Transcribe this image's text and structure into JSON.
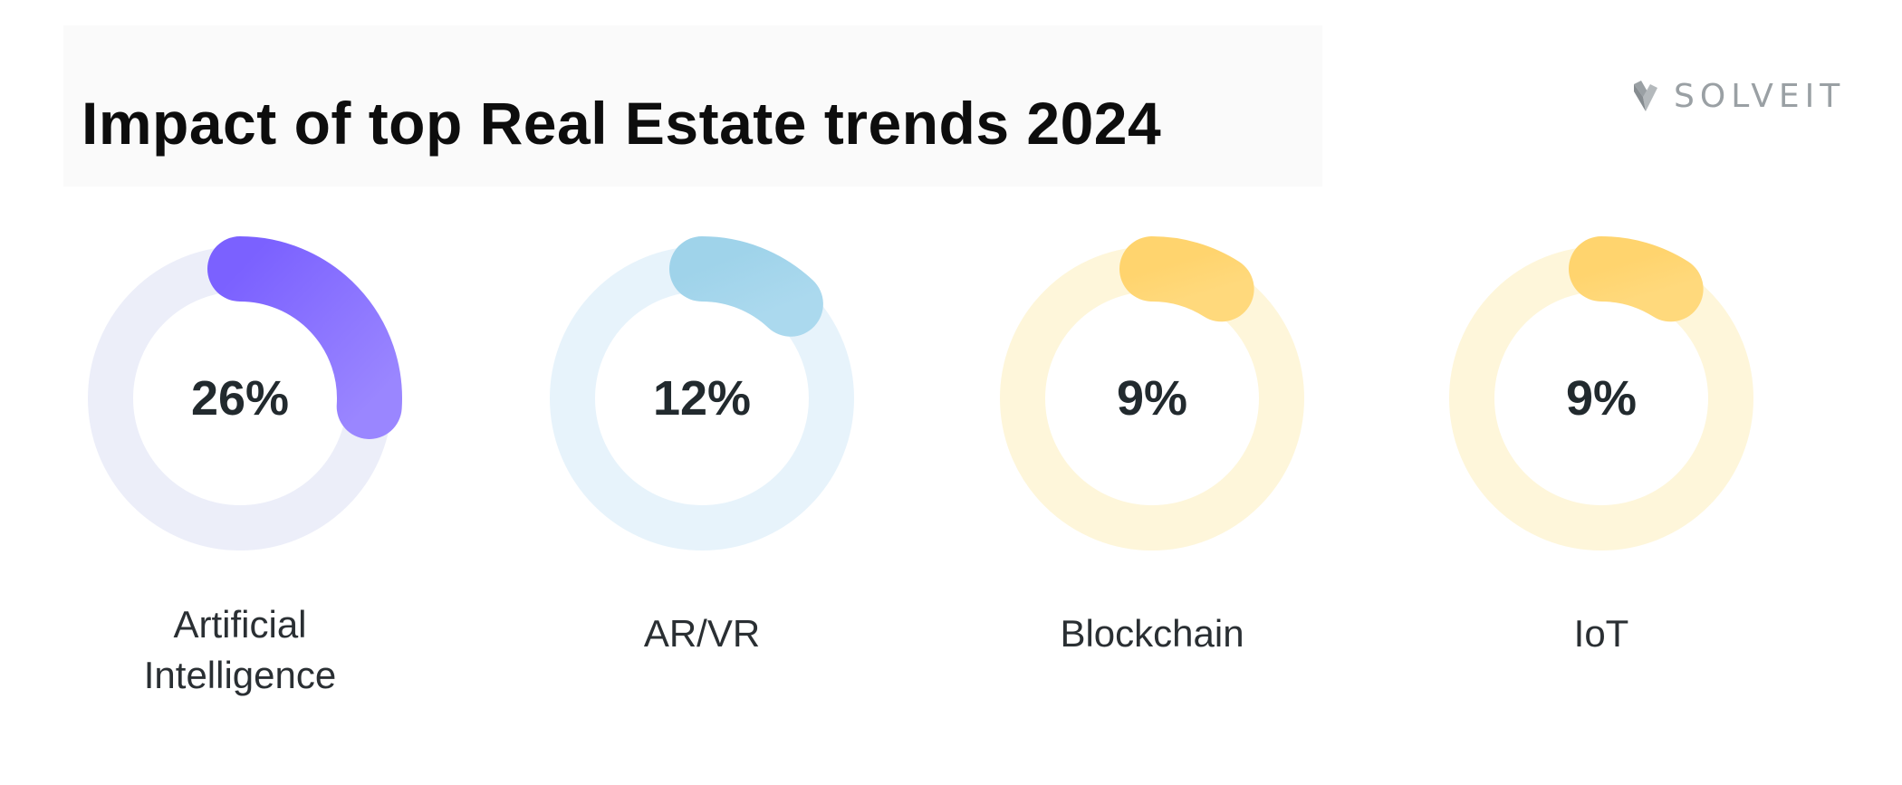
{
  "title": "Impact of top Real Estate trends 2024",
  "logo": {
    "text": "SOLVEIT",
    "icon": "solveit-logo-icon"
  },
  "chart_data": {
    "type": "pie",
    "subtype": "donut-gauges",
    "title": "Impact of top Real Estate trends 2024",
    "items": [
      {
        "label_lines": [
          "Artificial",
          "Intelligence"
        ],
        "value": 26,
        "display": "26%",
        "color": "#7b61ff",
        "color_end": "#9a86ff",
        "track": "#eceef9"
      },
      {
        "label_lines": [
          "AR/VR"
        ],
        "value": 12,
        "display": "12%",
        "color": "#9fd3ea",
        "color_end": "#abd9ee",
        "track": "#e7f3fb"
      },
      {
        "label_lines": [
          "Blockchain"
        ],
        "value": 9,
        "display": "9%",
        "color": "#ffd46e",
        "color_end": "#ffd97c",
        "track": "#fef6da"
      },
      {
        "label_lines": [
          "IoT"
        ],
        "value": 9,
        "display": "9%",
        "color": "#ffd46e",
        "color_end": "#ffd97c",
        "track": "#fef6da"
      }
    ]
  }
}
